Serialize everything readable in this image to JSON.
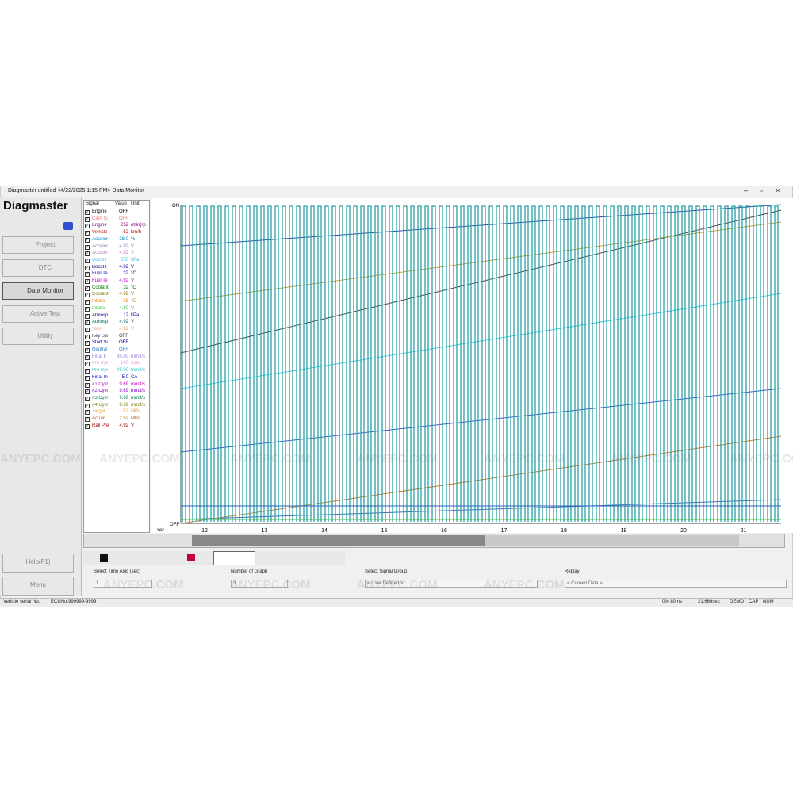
{
  "window": {
    "title": "Diagmaster untitled <4/22/2025 1:15 PM> Data Monitor"
  },
  "sidebar": {
    "logo": "Diagmaster",
    "nav": [
      "Project",
      "DTC",
      "Data Monitor",
      "Active Test",
      "Utility"
    ],
    "help": "Help(F1)",
    "menu": "Menu"
  },
  "table": {
    "headers": [
      "Signal",
      "Value",
      "Unit"
    ],
    "rows": [
      {
        "signal": "Engine",
        "value": "OFF",
        "unit": "",
        "color": "#000000"
      },
      {
        "signal": "Cam Si",
        "value": "OFF",
        "unit": "",
        "color": "#e08080"
      },
      {
        "signal": "Engine",
        "value": "252",
        "unit": "/min(rp",
        "color": "#800080"
      },
      {
        "signal": "Vehicle",
        "value": "52",
        "unit": "km/h",
        "color": "#c00000"
      },
      {
        "signal": "Acceler",
        "value": "26.0",
        "unit": "%",
        "color": "#0080c0"
      },
      {
        "signal": "Acceler",
        "value": "4.92",
        "unit": "V",
        "color": "#8080c0"
      },
      {
        "signal": "Acceler",
        "value": "4.92",
        "unit": "V",
        "color": "#c080c0"
      },
      {
        "signal": "Boost F",
        "value": "250",
        "unit": "kPa",
        "color": "#40c0e0"
      },
      {
        "signal": "Boost F",
        "value": "4.92",
        "unit": "V",
        "color": "#000080"
      },
      {
        "signal": "Fuel Te",
        "value": "32",
        "unit": "°C",
        "color": "#0000c0"
      },
      {
        "signal": "Fuel Te",
        "value": "4.92",
        "unit": "V",
        "color": "#c000c0"
      },
      {
        "signal": "Coolant",
        "value": "32",
        "unit": "°C",
        "color": "#008000"
      },
      {
        "signal": "Coolant",
        "value": "4.92",
        "unit": "V",
        "color": "#808000"
      },
      {
        "signal": "Intake",
        "value": "38",
        "unit": "°C",
        "color": "#e08000"
      },
      {
        "signal": "Intake",
        "value": "4.80",
        "unit": "V",
        "color": "#40c040"
      },
      {
        "signal": "Atmosp",
        "value": "12",
        "unit": "kPa",
        "color": "#000080"
      },
      {
        "signal": "Atmosp",
        "value": "4.92",
        "unit": "V",
        "color": "#006060"
      },
      {
        "signal": "Swirl",
        "value": "4.92",
        "unit": "V",
        "color": "#e0a080"
      },
      {
        "signal": "Key Sw",
        "value": "OFF",
        "unit": "",
        "color": "#404040"
      },
      {
        "signal": "Start Si",
        "value": "OFF",
        "unit": "",
        "color": "#0000a0"
      },
      {
        "signal": "Neutral",
        "value": "OFF",
        "unit": "",
        "color": "#4080c0"
      },
      {
        "signal": "Final F",
        "value": "45.00",
        "unit": "mm3/s",
        "color": "#a080e0"
      },
      {
        "signal": "Pre inje",
        "value": "100",
        "unit": "usec",
        "color": "#e0a0e0"
      },
      {
        "signal": "Pre inje",
        "value": "45.00",
        "unit": "mm3/s",
        "color": "#40c0c0"
      },
      {
        "signal": "Final In",
        "value": "-5.0",
        "unit": "CA",
        "color": "#0000c0"
      },
      {
        "signal": "#1 Cylir",
        "value": "9.69",
        "unit": "mm3/s",
        "color": "#c000c0"
      },
      {
        "signal": "#2 Cylir",
        "value": "9.69",
        "unit": "mm3/s",
        "color": "#8000c0"
      },
      {
        "signal": "#3 Cylir",
        "value": "9.69",
        "unit": "mm3/s",
        "color": "#008040"
      },
      {
        "signal": "#4 Cylir",
        "value": "9.69",
        "unit": "mm3/s",
        "color": "#808000"
      },
      {
        "signal": "Target",
        "value": "52",
        "unit": "MPa",
        "color": "#e0a040"
      },
      {
        "signal": "Actual",
        "value": "2.52",
        "unit": "MPa",
        "color": "#c06000"
      },
      {
        "signal": "Rail Pre",
        "value": "4.92",
        "unit": "V",
        "color": "#a00000"
      }
    ]
  },
  "graph": {
    "on_label": "ON",
    "off_label": "OFF",
    "axis_unit": "sec",
    "ticks": [
      "12",
      "13",
      "14",
      "15",
      "16",
      "17",
      "18",
      "19",
      "20",
      "21"
    ]
  },
  "controls": [
    {
      "label": "Select Time Axis (sec)",
      "value": "1"
    },
    {
      "label": "Number of Graph",
      "value": "3"
    },
    {
      "label": "Select Signal Group",
      "value": "< User Defined >"
    },
    {
      "label": "Replay",
      "value": "< Current Data >"
    }
  ],
  "status": [
    "Vehicle serial No.",
    "ECUNo:999999-9999",
    "0% 80ms",
    "21.666sec",
    "DEMO",
    "CAP",
    "NUM"
  ],
  "watermark": "ANYEPC.COM"
}
